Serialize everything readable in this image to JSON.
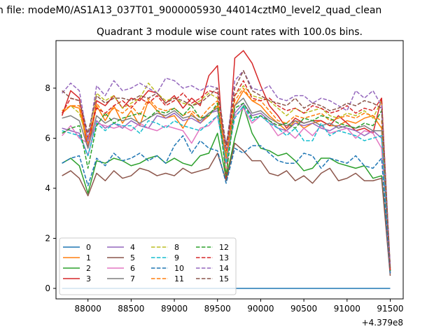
{
  "suptitle": "n file: modeM0/AS1A13_037T01_9000005930_44014cztM0_level2_quad_clean",
  "title": "Quadrant 3 module wise count rates with 100.0s bins.",
  "x_offset_label": "+4.379e8",
  "chart_data": {
    "type": "line",
    "title": "Quadrant 3 module wise count rates with 100.0s bins.",
    "xlabel": "",
    "ylabel": "",
    "xlim": [
      87630,
      91650
    ],
    "ylim": [
      -0.42,
      9.9
    ],
    "x_offset": 437900000,
    "x_ticks": [
      88000,
      88500,
      89000,
      89500,
      90000,
      90500,
      91000,
      91500
    ],
    "x_tick_labels": [
      "88000",
      "88500",
      "89000",
      "89500",
      "90000",
      "90500",
      "91000",
      "91500"
    ],
    "y_ticks": [
      0,
      2,
      4,
      6,
      8
    ],
    "y_tick_labels": [
      "0",
      "2",
      "4",
      "6",
      "8"
    ],
    "grid": false,
    "legend_position": "lower-left",
    "x": [
      87700,
      87800,
      87900,
      88000,
      88100,
      88200,
      88300,
      88400,
      88500,
      88600,
      88700,
      88800,
      88900,
      89000,
      89100,
      89200,
      89300,
      89400,
      89500,
      89600,
      89700,
      89800,
      89900,
      90000,
      90100,
      90200,
      90300,
      90400,
      90500,
      90600,
      90700,
      90800,
      90900,
      91000,
      91100,
      91200,
      91300,
      91400,
      91500
    ],
    "series": [
      {
        "name": "0",
        "color": "#1f77b4",
        "dash": "solid",
        "values": [
          0,
          0,
          0,
          0,
          0,
          0,
          0,
          0,
          0,
          0,
          0,
          0,
          0,
          0,
          0,
          0,
          0,
          0,
          0,
          0,
          0,
          0,
          0,
          0,
          0,
          0,
          0,
          0,
          0,
          0,
          0,
          0,
          0,
          0,
          0,
          0,
          0,
          0,
          0
        ]
      },
      {
        "name": "1",
        "color": "#ff7f0e",
        "dash": "solid",
        "values": [
          7.0,
          7.3,
          7.2,
          5.6,
          7.3,
          6.7,
          7.3,
          6.6,
          7.1,
          6.5,
          7.5,
          7.1,
          6.8,
          6.9,
          6.4,
          7.0,
          6.6,
          6.9,
          7.3,
          5.0,
          7.3,
          7.9,
          7.5,
          7.3,
          6.9,
          6.6,
          6.3,
          6.7,
          6.4,
          6.6,
          6.7,
          6.5,
          6.5,
          6.7,
          6.6,
          6.8,
          6.9,
          6.4,
          0.7
        ]
      },
      {
        "name": "2",
        "color": "#2ca02c",
        "dash": "solid",
        "values": [
          5.0,
          5.2,
          4.9,
          3.8,
          5.1,
          5.0,
          5.2,
          5.1,
          4.9,
          5.0,
          5.2,
          5.3,
          5.0,
          5.2,
          5.0,
          4.9,
          5.3,
          5.4,
          6.2,
          4.4,
          6.0,
          7.3,
          6.2,
          5.6,
          5.5,
          5.3,
          5.4,
          5.1,
          4.7,
          4.8,
          5.2,
          5.2,
          5.0,
          4.9,
          4.8,
          4.9,
          4.4,
          4.5,
          0.7
        ]
      },
      {
        "name": "3",
        "color": "#d62728",
        "dash": "solid",
        "values": [
          6.9,
          7.9,
          7.6,
          5.6,
          7.5,
          7.3,
          7.7,
          7.2,
          7.6,
          7.5,
          7.9,
          7.8,
          7.4,
          7.7,
          7.2,
          7.6,
          7.3,
          8.5,
          8.9,
          4.3,
          9.2,
          9.5,
          9.0,
          8.1,
          7.3,
          6.9,
          6.4,
          6.8,
          6.6,
          6.7,
          6.7,
          6.5,
          6.9,
          6.6,
          6.3,
          6.4,
          6.2,
          7.6,
          0.6
        ]
      },
      {
        "name": "4",
        "color": "#9467bd",
        "dash": "solid",
        "values": [
          6.4,
          6.3,
          6.2,
          5.3,
          6.7,
          6.4,
          6.6,
          6.4,
          6.7,
          6.5,
          6.4,
          6.9,
          6.8,
          7.0,
          6.7,
          6.8,
          6.6,
          7.0,
          7.1,
          5.8,
          7.0,
          7.4,
          6.9,
          7.0,
          6.7,
          6.4,
          6.3,
          6.6,
          6.5,
          6.6,
          6.4,
          6.3,
          6.5,
          6.4,
          6.3,
          6.1,
          6.3,
          6.0,
          0.8
        ]
      },
      {
        "name": "5",
        "color": "#8c564b",
        "dash": "solid",
        "values": [
          4.5,
          4.7,
          4.4,
          3.7,
          4.6,
          4.3,
          4.7,
          4.4,
          4.5,
          4.8,
          4.7,
          4.5,
          4.6,
          4.5,
          4.8,
          4.6,
          4.7,
          4.8,
          5.4,
          4.3,
          5.8,
          5.5,
          5.1,
          5.1,
          4.6,
          4.5,
          4.7,
          4.3,
          4.5,
          4.2,
          4.6,
          4.8,
          4.3,
          4.4,
          4.6,
          4.3,
          4.3,
          4.4,
          0.5
        ]
      },
      {
        "name": "6",
        "color": "#e377c2",
        "dash": "solid",
        "values": [
          6.1,
          6.5,
          6.0,
          5.8,
          6.6,
          6.5,
          6.4,
          6.5,
          6.3,
          6.6,
          6.4,
          6.3,
          6.5,
          6.4,
          6.3,
          5.8,
          6.4,
          6.5,
          6.9,
          5.0,
          6.9,
          7.2,
          6.6,
          6.9,
          6.6,
          6.1,
          6.3,
          6.0,
          6.4,
          6.1,
          6.5,
          6.2,
          6.3,
          6.4,
          6.0,
          6.3,
          6.2,
          5.6,
          0.6
        ]
      },
      {
        "name": "7",
        "color": "#7f7f7f",
        "dash": "solid",
        "values": [
          6.8,
          6.9,
          6.7,
          5.6,
          6.9,
          6.6,
          6.8,
          6.7,
          6.8,
          6.6,
          6.8,
          7.0,
          6.9,
          7.1,
          6.8,
          6.9,
          6.7,
          7.0,
          7.2,
          5.2,
          7.3,
          7.6,
          7.0,
          7.1,
          6.8,
          6.6,
          6.5,
          6.7,
          6.6,
          6.7,
          6.5,
          6.6,
          6.4,
          6.5,
          6.4,
          6.5,
          6.3,
          6.3,
          0.7
        ]
      },
      {
        "name": "8",
        "color": "#bcbd22",
        "dash": "dashed",
        "values": [
          7.1,
          7.3,
          7.0,
          5.9,
          7.8,
          7.5,
          7.7,
          7.2,
          7.4,
          7.6,
          8.2,
          7.8,
          7.5,
          7.6,
          7.4,
          7.3,
          7.5,
          7.8,
          7.6,
          5.4,
          7.7,
          8.1,
          7.7,
          7.6,
          7.5,
          7.2,
          6.9,
          7.2,
          7.0,
          7.1,
          7.2,
          6.9,
          6.8,
          7.0,
          6.9,
          7.1,
          6.8,
          7.5,
          0.8
        ]
      },
      {
        "name": "9",
        "color": "#17becf",
        "dash": "dashed",
        "values": [
          6.3,
          6.2,
          6.1,
          5.3,
          6.6,
          6.3,
          6.6,
          6.5,
          6.5,
          6.2,
          6.7,
          6.6,
          6.4,
          6.7,
          6.5,
          6.4,
          6.3,
          6.6,
          6.9,
          5.0,
          6.8,
          7.3,
          6.7,
          6.9,
          6.6,
          6.4,
          6.1,
          6.4,
          5.9,
          5.9,
          6.6,
          6.1,
          6.3,
          6.2,
          6.1,
          5.9,
          6.0,
          6.1,
          0.7
        ]
      },
      {
        "name": "10",
        "color": "#1f77b4",
        "dash": "dashed",
        "values": [
          5.0,
          5.2,
          5.3,
          4.1,
          5.2,
          4.9,
          5.4,
          5.1,
          5.2,
          5.4,
          5.1,
          5.3,
          5.0,
          5.7,
          6.1,
          5.4,
          5.9,
          5.6,
          5.5,
          4.2,
          5.6,
          5.4,
          5.7,
          5.7,
          5.4,
          5.1,
          5.0,
          5.0,
          5.4,
          5.3,
          4.8,
          5.2,
          5.1,
          5.0,
          5.3,
          4.9,
          4.8,
          5.2,
          0.6
        ]
      },
      {
        "name": "11",
        "color": "#ff7f0e",
        "dash": "dashed",
        "values": [
          7.1,
          7.3,
          7.3,
          5.8,
          7.4,
          6.9,
          7.2,
          7.0,
          7.3,
          6.9,
          7.6,
          7.2,
          7.1,
          7.2,
          6.9,
          7.1,
          6.8,
          7.2,
          7.5,
          5.2,
          7.5,
          8.0,
          7.5,
          7.5,
          7.1,
          6.7,
          6.6,
          6.9,
          6.8,
          6.9,
          7.0,
          6.7,
          6.8,
          6.9,
          6.8,
          7.0,
          6.9,
          6.7,
          0.8
        ]
      },
      {
        "name": "12",
        "color": "#2ca02c",
        "dash": "dashed",
        "values": [
          6.2,
          6.4,
          6.5,
          4.8,
          6.5,
          7.0,
          6.6,
          6.8,
          6.9,
          7.0,
          6.8,
          7.1,
          7.0,
          7.2,
          6.9,
          7.3,
          6.8,
          6.9,
          7.4,
          4.5,
          7.2,
          7.4,
          6.8,
          6.9,
          6.7,
          6.5,
          6.6,
          6.4,
          6.8,
          6.7,
          6.9,
          6.8,
          6.6,
          6.5,
          6.4,
          6.6,
          6.5,
          7.1,
          0.7
        ]
      },
      {
        "name": "13",
        "color": "#d62728",
        "dash": "dashed",
        "values": [
          7.0,
          7.6,
          7.5,
          6.0,
          7.2,
          7.0,
          7.3,
          7.5,
          7.2,
          7.6,
          7.4,
          7.7,
          7.3,
          7.5,
          7.8,
          7.4,
          7.6,
          7.9,
          7.8,
          5.5,
          7.7,
          8.3,
          7.6,
          7.5,
          7.6,
          7.3,
          7.1,
          7.2,
          7.0,
          7.3,
          7.2,
          7.0,
          7.1,
          7.3,
          7.0,
          7.2,
          7.1,
          7.6,
          0.7
        ]
      },
      {
        "name": "14",
        "color": "#9467bd",
        "dash": "dashed",
        "values": [
          7.8,
          8.2,
          7.9,
          5.9,
          8.1,
          7.7,
          8.3,
          7.9,
          8.0,
          8.2,
          8.0,
          7.8,
          8.4,
          8.3,
          8.0,
          8.1,
          7.9,
          8.1,
          8.0,
          5.6,
          8.3,
          8.7,
          8.0,
          7.9,
          8.1,
          7.6,
          7.5,
          7.7,
          7.7,
          7.4,
          7.6,
          7.5,
          7.3,
          7.1,
          7.9,
          7.6,
          7.9,
          7.3,
          0.9
        ]
      },
      {
        "name": "15",
        "color": "#8c564b",
        "dash": "dashed",
        "values": [
          7.9,
          7.6,
          7.5,
          6.2,
          7.7,
          7.4,
          7.6,
          7.6,
          7.5,
          7.7,
          7.6,
          7.8,
          7.4,
          7.6,
          7.5,
          7.3,
          7.4,
          7.7,
          8.0,
          5.7,
          8.0,
          8.7,
          7.9,
          7.7,
          7.5,
          7.4,
          7.3,
          7.6,
          7.2,
          7.4,
          7.3,
          7.1,
          7.2,
          7.4,
          7.3,
          7.5,
          7.4,
          7.2,
          0.8
        ]
      }
    ]
  }
}
